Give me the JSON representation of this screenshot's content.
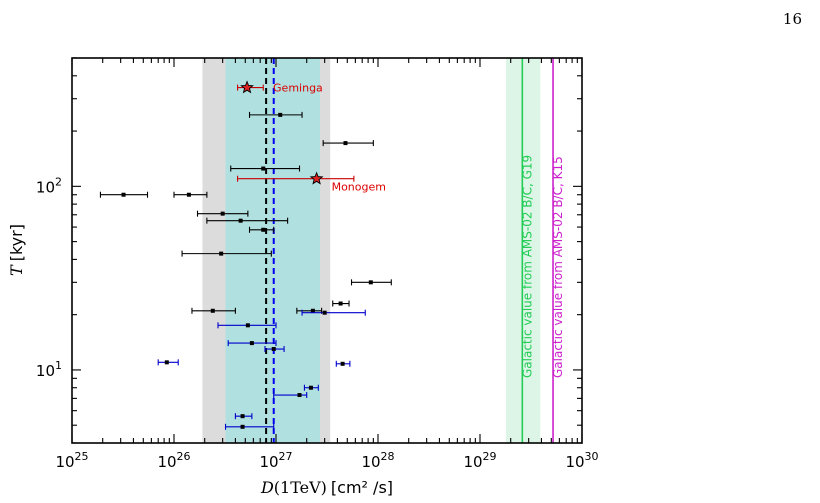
{
  "page_number": "16",
  "chart_data": {
    "type": "scatter",
    "xscale": "log",
    "yscale": "log",
    "xlim": [
      1e+25,
      1e+30
    ],
    "ylim": [
      4,
      500
    ],
    "xlabel_html": "D(1TeV) [cm² /s]",
    "xlabel_var": "D",
    "xlabel_arg": "(1TeV)",
    "xlabel_units": "[cm² /s]",
    "ylabel_var": "T",
    "ylabel_units": "[kyr]",
    "x_ticks": [
      {
        "value": 1e+25,
        "label_base": "10",
        "label_exp": "25"
      },
      {
        "value": 1e+26,
        "label_base": "10",
        "label_exp": "26"
      },
      {
        "value": 1e+27,
        "label_base": "10",
        "label_exp": "27"
      },
      {
        "value": 1e+28,
        "label_base": "10",
        "label_exp": "28"
      },
      {
        "value": 1e+29,
        "label_base": "10",
        "label_exp": "29"
      },
      {
        "value": 1e+30,
        "label_base": "10",
        "label_exp": "30"
      }
    ],
    "y_ticks": [
      {
        "value": 10,
        "label_base": "10",
        "label_exp": "1"
      },
      {
        "value": 100,
        "label_base": "10",
        "label_exp": "2"
      }
    ],
    "bands": [
      {
        "name": "outer-range",
        "xmin": 1.9e+26,
        "xmax": 3.4e+27,
        "color": "#dcdcdc"
      },
      {
        "name": "inner-range",
        "xmin": 3.2e+26,
        "xmax": 2.7e+27,
        "color": "#b0e0e0"
      },
      {
        "name": "ams-band",
        "xmin": 1.8e+29,
        "xmax": 3.9e+29,
        "color": "#ddf5e6"
      }
    ],
    "vlines": [
      {
        "name": "black-dashed",
        "x": 8e+26,
        "color": "#000000",
        "dashed": true
      },
      {
        "name": "blue-dashed",
        "x": 9.5e+26,
        "color": "#0000ee",
        "dashed": true
      },
      {
        "name": "g19-line",
        "x": 2.6e+29,
        "color": "#22cc55",
        "dashed": false,
        "label": "Galactic value from AMS-02 B/C, G19"
      },
      {
        "name": "k15-line",
        "x": 5.2e+29,
        "color": "#cc22cc",
        "dashed": false,
        "label": "Galactic value from AMS-02 B/C, K15"
      }
    ],
    "series": [
      {
        "color": "#000000",
        "points": [
          {
            "x": 3.2e+25,
            "y": 90,
            "xerr": [
              1.9e+25,
              5.5e+25
            ]
          },
          {
            "x": 1.4e+26,
            "y": 90,
            "xerr": [
              1e+26,
              2.1e+26
            ]
          },
          {
            "x": 3e+26,
            "y": 71,
            "xerr": [
              1.7e+26,
              5.3e+26
            ]
          },
          {
            "x": 4.5e+26,
            "y": 65,
            "xerr": [
              2.1e+26,
              1.3e+27
            ]
          },
          {
            "x": 7.5e+26,
            "y": 58,
            "xerr": [
              5.5e+26,
              9.5e+26
            ]
          },
          {
            "x": 2.9e+26,
            "y": 43,
            "xerr": [
              1.2e+26,
              9e+26
            ]
          },
          {
            "x": 8.5e+27,
            "y": 30,
            "xerr": [
              5.5e+27,
              1.35e+28
            ]
          },
          {
            "x": 4.3e+27,
            "y": 23,
            "xerr": [
              3.6e+27,
              5.2e+27
            ]
          },
          {
            "x": 2.4e+26,
            "y": 21,
            "xerr": [
              1.5e+26,
              4e+26
            ]
          },
          {
            "x": 2.3e+27,
            "y": 21,
            "xerr": [
              1.6e+27,
              2.8e+27
            ]
          },
          {
            "x": 1.1e+27,
            "y": 245,
            "xerr": [
              5.5e+26,
              1.8e+27
            ]
          },
          {
            "x": 4.8e+27,
            "y": 172,
            "xerr": [
              2.9e+27,
              9e+27
            ]
          },
          {
            "x": 7.5e+26,
            "y": 125,
            "xerr": [
              3.6e+26,
              1.7e+27
            ]
          }
        ]
      },
      {
        "color": "#0000cc",
        "points": [
          {
            "x": 3e+27,
            "y": 20.5,
            "xerr": [
              1.8e+27,
              7.5e+27
            ]
          },
          {
            "x": 5.3e+26,
            "y": 17.5,
            "xerr": [
              2.7e+26,
              1e+27
            ]
          },
          {
            "x": 5.8e+26,
            "y": 14,
            "xerr": [
              3.4e+26,
              1e+27
            ]
          },
          {
            "x": 9.5e+26,
            "y": 13,
            "xerr": [
              7.8e+26,
              1.2e+27
            ]
          },
          {
            "x": 8.5e+25,
            "y": 11,
            "xerr": [
              7e+25,
              1.1e+26
            ]
          },
          {
            "x": 4.5e+27,
            "y": 10.8,
            "xerr": [
              3.9e+27,
              5.3e+27
            ]
          },
          {
            "x": 2.2e+27,
            "y": 8.0,
            "xerr": [
              1.9e+27,
              2.6e+27
            ]
          },
          {
            "x": 1.7e+27,
            "y": 7.3,
            "xerr": [
              9.5e+26,
              2e+27
            ]
          },
          {
            "x": 4.7e+26,
            "y": 5.6,
            "xerr": [
              4e+26,
              5.8e+26
            ]
          },
          {
            "x": 4.7e+26,
            "y": 4.9,
            "xerr": [
              3.2e+26,
              9.5e+26
            ]
          }
        ]
      },
      {
        "color": "#cc0000",
        "marker": "star",
        "points": [
          {
            "x": 5.2e+26,
            "y": 345,
            "xerr": [
              4.2e+26,
              7.5e+26
            ],
            "label": "Geminga"
          },
          {
            "x": 2.5e+27,
            "y": 110,
            "xerr": [
              4.2e+26,
              5.8e+27
            ],
            "label": "Monogem"
          }
        ]
      }
    ],
    "annotations": {
      "geminga": "Geminga",
      "monogem": "Monogem"
    }
  }
}
